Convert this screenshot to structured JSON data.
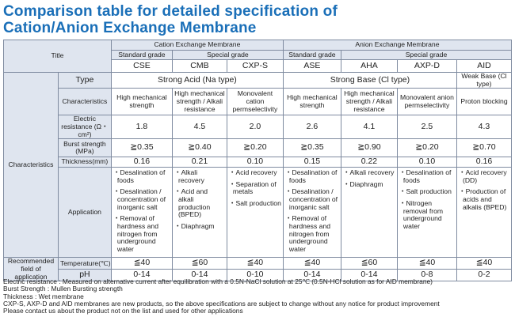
{
  "header": {
    "title_line1": "Comparison  table for detailed specification of",
    "title_line2": "Cation/Anion Exchange Membrane"
  },
  "table": {
    "title_label": "Title",
    "cation_group": "Cation Exchange Membrane",
    "anion_group": "Anion Exchange Membrane",
    "standard_grade": "Standard grade",
    "special_grade": "Special grade",
    "products": [
      "CSE",
      "CMB",
      "CXP-S",
      "ASE",
      "AHA",
      "AXP-D",
      "AID"
    ],
    "characteristics_label": "Characteristics",
    "type_label": "Type",
    "type_strong_acid": "Strong Acid (Na type)",
    "type_strong_base": "Strong Base (Cl type)",
    "type_weak_base": "Weak Base (Cl type)",
    "char_label": "Characteristics",
    "char_values": [
      "High mechanical strength",
      "High mechanical strength / Alkali resistance",
      "Monovalent cation permselectivity",
      "High mechanical strength",
      "High mechanical strength / Alkali resistance",
      "Monovalent anion permselectivity",
      "Proton blocking"
    ],
    "resistance_label": "Electric resistance (Ω・cm²)",
    "resistance": [
      "1.8",
      "4.5",
      "2.0",
      "2.6",
      "4.1",
      "2.5",
      "4.3"
    ],
    "burst_label": "Burst strength (MPa)",
    "burst": [
      "≧0.35",
      "≧0.40",
      "≧0.20",
      "≧0.35",
      "≧0.90",
      "≧0.20",
      "≧0.70"
    ],
    "thickness_label": "Thickness(mm)",
    "thickness": [
      "0.16",
      "0.21",
      "0.10",
      "0.15",
      "0.22",
      "0.10",
      "0.16"
    ],
    "application_label": "Application",
    "applications": [
      [
        "・Desalination of foods",
        "・Desalination / concentration of inorganic salt",
        "・Removal of hardness and nitrogen from underground water"
      ],
      [
        "・Alkali recovery",
        "・Acid and alkali production (BPED)",
        "・Diaphragm"
      ],
      [
        "・Acid recovery",
        "・Separation of metals",
        "・Salt production"
      ],
      [
        "・Desalination of foods",
        "・Desalination / concentration of inorganic salt",
        "・Removal of hardness and nitrogen from underground water"
      ],
      [
        "・Alkali recovery",
        "・Diaphragm"
      ],
      [
        "・Desalination of foods",
        "・Salt production",
        "・Nitrogen removal from underground water"
      ],
      [
        "・Acid recovery (DD)",
        "・Production of acids and alkalis (BPED)"
      ]
    ],
    "recommended_label": "Recommended field of application",
    "temperature_label": "Temperature(℃)",
    "temperature": [
      "≦40",
      "≦60",
      "≦40",
      "≦40",
      "≦60",
      "≦40",
      "≦40"
    ],
    "ph_label": "pH",
    "ph": [
      "0-14",
      "0-14",
      "0-10",
      "0-14",
      "0-14",
      "0-8",
      "0-2"
    ]
  },
  "footer": {
    "note1": "Electric resistance : Measured on alternative current after equilibration with a 0.5N-NaCl solution at 25℃ (0.5N-HCl solution as for AID membrane)",
    "note2": "Burst Strength : Mullen Bursting strength",
    "note3": "Thickness : Wet membrane",
    "note4": "CXP-S, AXP-D and AID membranes are new products, so the above specifications are subject to change without any notice for product improvement",
    "note5": "Please contact us about the product not on the list  and used for other applications"
  }
}
